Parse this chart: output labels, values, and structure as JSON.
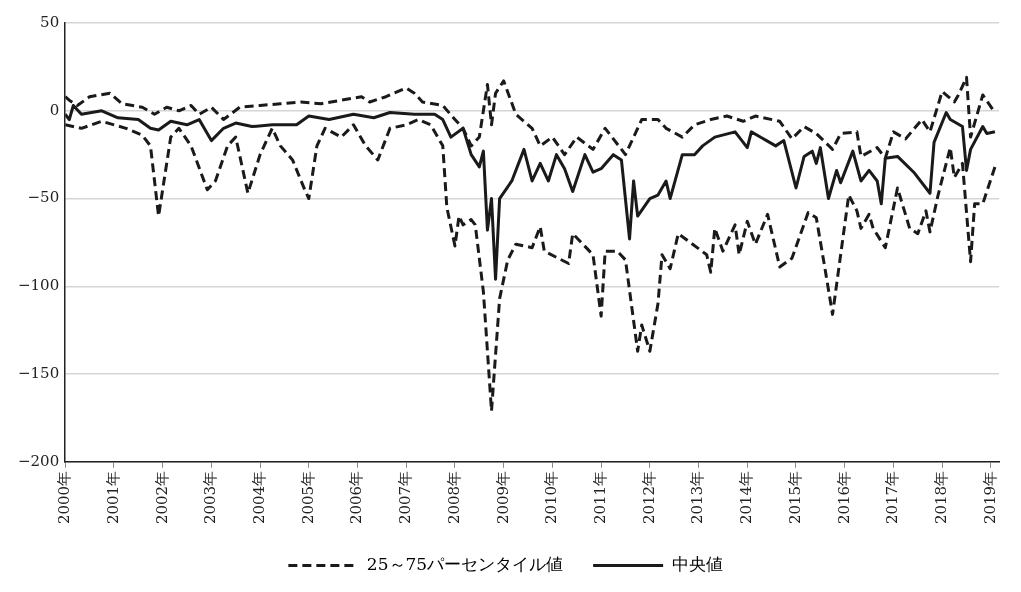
{
  "chart_data": {
    "type": "line",
    "ylim": [
      -200,
      50
    ],
    "yticks": [
      -200,
      -150,
      -100,
      -50,
      0,
      50
    ],
    "xlim": [
      "2000-01",
      "2019-03"
    ],
    "xticks": [
      {
        "value": "2000-01",
        "label": "2000年"
      },
      {
        "value": "2001-01",
        "label": "2001年"
      },
      {
        "value": "2002-01",
        "label": "2002年"
      },
      {
        "value": "2003-01",
        "label": "2003年"
      },
      {
        "value": "2004-01",
        "label": "2004年"
      },
      {
        "value": "2005-01",
        "label": "2005年"
      },
      {
        "value": "2006-01",
        "label": "2006年"
      },
      {
        "value": "2007-01",
        "label": "2007年"
      },
      {
        "value": "2008-01",
        "label": "2008年"
      },
      {
        "value": "2009-01",
        "label": "2009年"
      },
      {
        "value": "2010-01",
        "label": "2010年"
      },
      {
        "value": "2011-01",
        "label": "2011年"
      },
      {
        "value": "2012-01",
        "label": "2012年"
      },
      {
        "value": "2013-01",
        "label": "2013年"
      },
      {
        "value": "2014-01",
        "label": "2014年"
      },
      {
        "value": "2015-01",
        "label": "2015年"
      },
      {
        "value": "2016-01",
        "label": "2016年"
      },
      {
        "value": "2017-01",
        "label": "2017年"
      },
      {
        "value": "2018-01",
        "label": "2018年"
      },
      {
        "value": "2019-01",
        "label": "2019年"
      }
    ],
    "grid": "y",
    "legend": "bottom",
    "marker": "none",
    "series": [
      {
        "name": "25～75パーセンタイル値",
        "color": "#1a1a1a",
        "line_style": "dashed",
        "x": [
          "2000-01",
          "2000-02",
          "2000-04",
          "2000-07",
          "2000-12",
          "2001-03",
          "2001-08",
          "2001-11",
          "2002-02",
          "2002-05",
          "2002-08",
          "2002-10",
          "2003-01",
          "2003-04",
          "2003-08",
          "2004-01",
          "2004-06",
          "2004-11",
          "2005-04",
          "2005-09",
          "2006-02",
          "2006-04",
          "2006-08",
          "2007-01",
          "2007-03",
          "2007-05",
          "2007-10",
          "2008-01",
          "2008-03",
          "2008-05",
          "2008-07",
          "2008-09",
          "2008-10",
          "2008-11",
          "2009-01",
          "2009-04",
          "2009-08",
          "2009-10",
          "2010-01",
          "2010-04",
          "2010-07",
          "2010-11",
          "2011-02",
          "2011-07",
          "2011-11",
          "2012-03",
          "2012-05",
          "2012-09",
          "2012-12",
          "2013-04",
          "2013-08",
          "2013-12",
          "2014-03",
          "2014-09",
          "2014-12",
          "2015-03",
          "2015-06",
          "2015-10",
          "2015-12",
          "2016-04",
          "2016-05",
          "2016-09",
          "2016-11",
          "2017-01",
          "2017-04",
          "2017-08",
          "2017-10",
          "2018-01",
          "2018-04",
          "2018-05",
          "2018-07",
          "2018-08",
          "2018-11",
          "2019-02"
        ],
        "values": [
          8,
          6,
          3,
          8,
          10,
          4,
          2,
          -2,
          2,
          0,
          3,
          -2,
          2,
          -5,
          2,
          3,
          4,
          5,
          4,
          6,
          8,
          5,
          8,
          13,
          10,
          5,
          3,
          -5,
          -10,
          -20,
          -15,
          15,
          -8,
          10,
          17,
          -2,
          -10,
          -20,
          -15,
          -25,
          -15,
          -22,
          -10,
          -25,
          -5,
          -5,
          -10,
          -15,
          -8,
          -5,
          -3,
          -6,
          -3,
          -6,
          -16,
          -9,
          -13,
          -22,
          -13,
          -12,
          -26,
          -21,
          -27,
          -12,
          -16,
          -5,
          -12,
          11,
          5,
          9,
          19,
          -15,
          9,
          -1
        ]
      },
      {
        "color": "#1a1a1a",
        "line_style": "dashed",
        "x": [
          "2000-01",
          "2000-05",
          "2000-10",
          "2001-04",
          "2001-08",
          "2001-10",
          "2001-12",
          "2002-01",
          "2002-03",
          "2002-05",
          "2002-08",
          "2002-12",
          "2003-02",
          "2003-05",
          "2003-07",
          "2003-10",
          "2004-01",
          "2004-04",
          "2004-06",
          "2004-09",
          "2004-12",
          "2005-01",
          "2005-03",
          "2005-05",
          "2005-09",
          "2005-12",
          "2006-03",
          "2006-06",
          "2006-09",
          "2007-01",
          "2007-04",
          "2007-07",
          "2007-10",
          "2007-11",
          "2008-01",
          "2008-02",
          "2008-03",
          "2008-05",
          "2008-06",
          "2008-08",
          "2008-10",
          "2008-12",
          "2009-02",
          "2009-04",
          "2009-08",
          "2009-10",
          "2009-11",
          "2010-05",
          "2010-06",
          "2010-11",
          "2011-01",
          "2011-02",
          "2011-05",
          "2011-07",
          "2011-10",
          "2011-11",
          "2012-01",
          "2012-03",
          "2012-04",
          "2012-06",
          "2012-08",
          "2013-03",
          "2013-04",
          "2013-05",
          "2013-07",
          "2013-10",
          "2013-11",
          "2014-01",
          "2014-03",
          "2014-06",
          "2014-09",
          "2014-12",
          "2015-04",
          "2015-06",
          "2015-08",
          "2015-10",
          "2016-02",
          "2016-04",
          "2016-05",
          "2016-07",
          "2016-08",
          "2016-11",
          "2017-02",
          "2017-05",
          "2017-07",
          "2017-09",
          "2017-10",
          "2017-12",
          "2018-03",
          "2018-04",
          "2018-06",
          "2018-08",
          "2018-09",
          "2018-11",
          "2019-02"
        ],
        "values": [
          -8,
          -10,
          -6,
          -10,
          -14,
          -20,
          -60,
          -45,
          -15,
          -10,
          -20,
          -45,
          -40,
          -20,
          -15,
          -47,
          -25,
          -10,
          -20,
          -28,
          -45,
          -50,
          -20,
          -10,
          -15,
          -8,
          -20,
          -28,
          -10,
          -8,
          -5,
          -8,
          -20,
          -55,
          -77,
          -60,
          -65,
          -62,
          -65,
          -103,
          -171,
          -107,
          -85,
          -76,
          -78,
          -66,
          -80,
          -87,
          -70,
          -82,
          -117,
          -80,
          -80,
          -85,
          -137,
          -122,
          -137,
          -110,
          -82,
          -90,
          -70,
          -82,
          -92,
          -67,
          -80,
          -65,
          -82,
          -63,
          -76,
          -59,
          -89,
          -84,
          -58,
          -61,
          -88,
          -116,
          -48,
          -57,
          -67,
          -59,
          -67,
          -78,
          -44,
          -67,
          -70,
          -57,
          -69,
          -48,
          -21,
          -38,
          -30,
          -86,
          -53,
          -53,
          -32
        ]
      },
      {
        "name": "中央値",
        "color": "#1a1a1a",
        "line_style": "solid",
        "x": [
          "2000-01",
          "2000-02",
          "2000-03",
          "2000-05",
          "2000-10",
          "2001-02",
          "2001-07",
          "2001-10",
          "2001-12",
          "2002-03",
          "2002-07",
          "2002-10",
          "2003-01",
          "2003-04",
          "2003-07",
          "2003-11",
          "2004-04",
          "2004-10",
          "2005-01",
          "2005-06",
          "2005-12",
          "2006-05",
          "2006-09",
          "2007-03",
          "2007-08",
          "2007-10",
          "2007-12",
          "2008-03",
          "2008-05",
          "2008-07",
          "2008-08",
          "2008-09",
          "2008-10",
          "2008-11",
          "2008-12",
          "2009-03",
          "2009-06",
          "2009-08",
          "2009-10",
          "2009-12",
          "2010-02",
          "2010-04",
          "2010-06",
          "2010-09",
          "2010-11",
          "2011-01",
          "2011-04",
          "2011-06",
          "2011-08",
          "2011-09",
          "2011-10",
          "2012-01",
          "2012-03",
          "2012-05",
          "2012-06",
          "2012-09",
          "2012-12",
          "2013-02",
          "2013-05",
          "2013-10",
          "2014-01",
          "2014-02",
          "2014-08",
          "2014-10",
          "2015-01",
          "2015-03",
          "2015-05",
          "2015-06",
          "2015-07",
          "2015-09",
          "2015-11",
          "2015-12",
          "2016-03",
          "2016-05",
          "2016-07",
          "2016-09",
          "2016-10",
          "2016-11",
          "2017-02",
          "2017-06",
          "2017-10",
          "2017-11",
          "2018-02",
          "2018-03",
          "2018-06",
          "2018-07",
          "2018-08",
          "2018-11",
          "2018-12",
          "2019-02"
        ],
        "values": [
          -2,
          -5,
          3,
          -2,
          0,
          -4,
          -5,
          -10,
          -11,
          -6,
          -8,
          -5,
          -17,
          -10,
          -7,
          -9,
          -8,
          -8,
          -3,
          -5,
          -2,
          -4,
          -1,
          -2,
          -2,
          -5,
          -15,
          -10,
          -25,
          -32,
          -23,
          -68,
          -50,
          -96,
          -50,
          -40,
          -22,
          -40,
          -30,
          -40,
          -25,
          -33,
          -46,
          -25,
          -35,
          -33,
          -25,
          -28,
          -73,
          -40,
          -60,
          -50,
          -48,
          -40,
          -50,
          -25,
          -25,
          -20,
          -15,
          -12,
          -21,
          -12,
          -20,
          -17,
          -44,
          -26,
          -23,
          -30,
          -21,
          -50,
          -34,
          -41,
          -23,
          -40,
          -34,
          -40,
          -53,
          -27,
          -26,
          -35,
          -47,
          -18,
          -1,
          -5,
          -9,
          -34,
          -22,
          -9,
          -13,
          -12
        ]
      }
    ]
  }
}
